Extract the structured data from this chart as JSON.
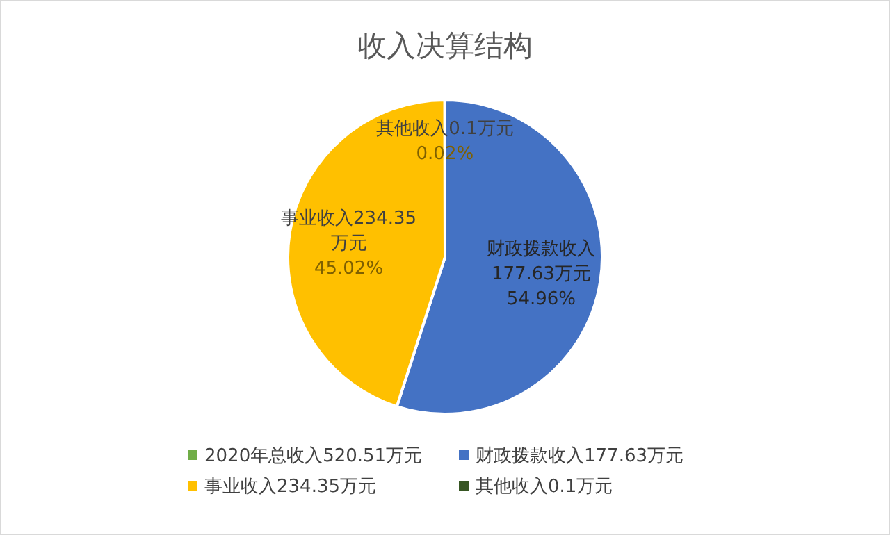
{
  "chart_data": {
    "type": "pie",
    "title": "收入决算结构",
    "categories": [
      "2020年总收入520.51万元",
      "财政拨款收入177.63万元",
      "事业收入234.35万元",
      "其他收入0.1万元"
    ],
    "values": [
      null,
      54.96,
      45.02,
      0.02
    ],
    "colors": [
      "#70ad47",
      "#4472c4",
      "#ffc000",
      "#375623"
    ],
    "value_labels": [
      null,
      "财政拨款收入177.63万元54.96%",
      "事业收入234.35万元45.02%",
      "其他收入0.1万元0.02%"
    ],
    "legend": "bottom"
  }
}
